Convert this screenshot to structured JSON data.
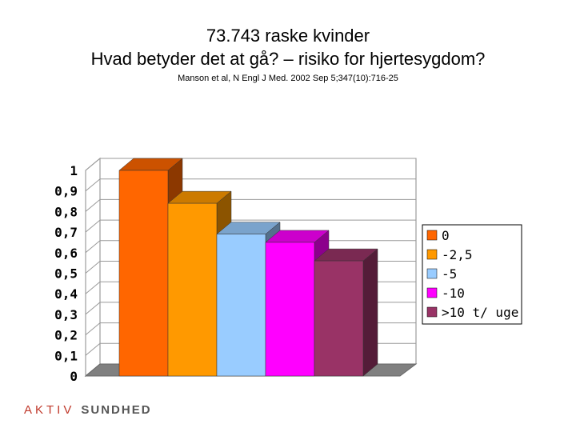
{
  "header": {
    "title_line1": "73.743 raske kvinder",
    "title_line2": "Hvad betyder det at gå? – risiko for hjertesygdom?",
    "citation": "Manson et al, N Engl J Med. 2002 Sep 5;347(10):716-25"
  },
  "logo": {
    "brand": "AKTIV",
    "rest": "SUNDHED",
    "color": "#c0392b"
  },
  "chart_data": {
    "type": "bar",
    "title": "",
    "xlabel": "",
    "ylabel": "",
    "ylim": [
      0,
      1
    ],
    "yticks": [
      "0",
      "0,1",
      "0,2",
      "0,3",
      "0,4",
      "0,5",
      "0,6",
      "0,7",
      "0,8",
      "0,9",
      "1"
    ],
    "grid": true,
    "legend_position": "right",
    "style": "3d",
    "series": [
      {
        "name": "0",
        "value": 1.0,
        "color": "#ff6600"
      },
      {
        "name": "-2,5",
        "value": 0.84,
        "color": "#ff9900"
      },
      {
        "name": "-5",
        "value": 0.69,
        "color": "#99ccff"
      },
      {
        "name": "-10",
        "value": 0.65,
        "color": "#ff00ff"
      },
      {
        "name": ">10 t/ uge",
        "value": 0.56,
        "color": "#993366"
      }
    ]
  }
}
